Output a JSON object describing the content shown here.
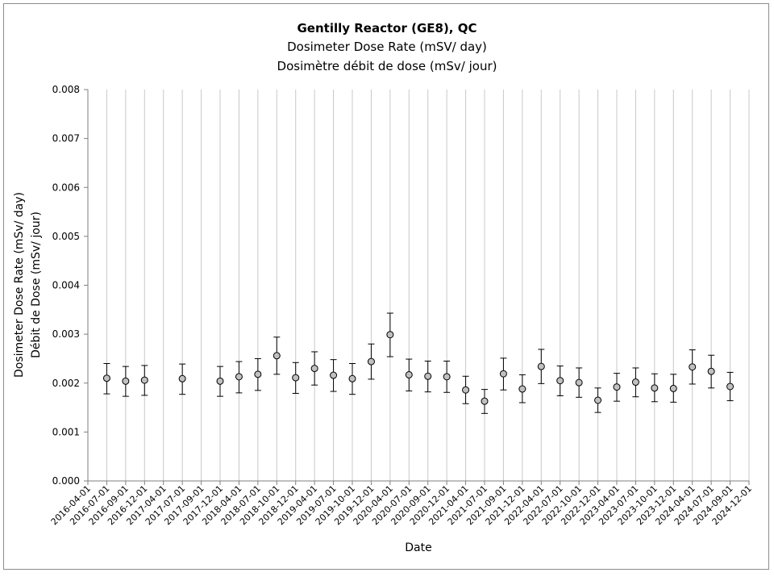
{
  "chart_data": {
    "type": "scatter",
    "title": "Gentilly Reactor (GE8), QC",
    "subtitle_1": "Dosimeter Dose Rate (mSV/ day)",
    "subtitle_2": "Dosimètre débit de dose (mSv/ jour)",
    "xlabel": "Date",
    "ylabel_1": "Dosimeter Dose Rate (mSv/ day)",
    "ylabel_2": "Débit de Dose (mSv/ jour)",
    "ylim": [
      0,
      0.008
    ],
    "yticks": [
      "0.000",
      "0.001",
      "0.002",
      "0.003",
      "0.004",
      "0.005",
      "0.006",
      "0.007",
      "0.008"
    ],
    "xticks": [
      "2016-04-01",
      "2016-07-01",
      "2016-09-01",
      "2016-12-01",
      "2017-04-01",
      "2017-07-01",
      "2017-09-01",
      "2017-12-01",
      "2018-04-01",
      "2018-07-01",
      "2018-10-01",
      "2018-12-01",
      "2019-04-01",
      "2019-07-01",
      "2019-10-01",
      "2019-12-01",
      "2020-04-01",
      "2020-07-01",
      "2020-09-01",
      "2020-12-01",
      "2021-04-01",
      "2021-07-01",
      "2021-09-01",
      "2021-12-01",
      "2022-04-01",
      "2022-07-01",
      "2022-10-01",
      "2022-12-01",
      "2023-04-01",
      "2023-07-01",
      "2023-10-01",
      "2023-12-01",
      "2024-04-01",
      "2024-07-01",
      "2024-09-01",
      "2024-12-01"
    ],
    "grid": "vertical",
    "marker_color": "#c0c0c0",
    "points": [
      {
        "x": "2016-07-01",
        "y": 0.0021,
        "err_low": 0.00178,
        "err_high": 0.0024
      },
      {
        "x": "2016-09-01",
        "y": 0.00204,
        "err_low": 0.00173,
        "err_high": 0.00234
      },
      {
        "x": "2016-12-01",
        "y": 0.00206,
        "err_low": 0.00175,
        "err_high": 0.00236
      },
      {
        "x": "2017-07-01",
        "y": 0.00209,
        "err_low": 0.00177,
        "err_high": 0.00239
      },
      {
        "x": "2017-12-01",
        "y": 0.00204,
        "err_low": 0.00173,
        "err_high": 0.00234
      },
      {
        "x": "2018-04-01",
        "y": 0.00213,
        "err_low": 0.0018,
        "err_high": 0.00244
      },
      {
        "x": "2018-07-01",
        "y": 0.00218,
        "err_low": 0.00185,
        "err_high": 0.0025
      },
      {
        "x": "2018-10-01",
        "y": 0.00256,
        "err_low": 0.00218,
        "err_high": 0.00294
      },
      {
        "x": "2018-12-01",
        "y": 0.00211,
        "err_low": 0.00179,
        "err_high": 0.00242
      },
      {
        "x": "2019-04-01",
        "y": 0.0023,
        "err_low": 0.00196,
        "err_high": 0.00264
      },
      {
        "x": "2019-07-01",
        "y": 0.00216,
        "err_low": 0.00183,
        "err_high": 0.00248
      },
      {
        "x": "2019-10-01",
        "y": 0.00209,
        "err_low": 0.00177,
        "err_high": 0.0024
      },
      {
        "x": "2019-12-01",
        "y": 0.00244,
        "err_low": 0.00208,
        "err_high": 0.0028
      },
      {
        "x": "2020-04-01",
        "y": 0.00299,
        "err_low": 0.00254,
        "err_high": 0.00343
      },
      {
        "x": "2020-07-01",
        "y": 0.00217,
        "err_low": 0.00184,
        "err_high": 0.00249
      },
      {
        "x": "2020-09-01",
        "y": 0.00214,
        "err_low": 0.00182,
        "err_high": 0.00245
      },
      {
        "x": "2020-12-01",
        "y": 0.00213,
        "err_low": 0.00181,
        "err_high": 0.00245
      },
      {
        "x": "2021-04-01",
        "y": 0.00186,
        "err_low": 0.00158,
        "err_high": 0.00214
      },
      {
        "x": "2021-07-01",
        "y": 0.00163,
        "err_low": 0.00138,
        "err_high": 0.00187
      },
      {
        "x": "2021-09-01",
        "y": 0.00219,
        "err_low": 0.00186,
        "err_high": 0.00251
      },
      {
        "x": "2021-12-01",
        "y": 0.00188,
        "err_low": 0.0016,
        "err_high": 0.00217
      },
      {
        "x": "2022-04-01",
        "y": 0.00234,
        "err_low": 0.00199,
        "err_high": 0.00269
      },
      {
        "x": "2022-07-01",
        "y": 0.00205,
        "err_low": 0.00174,
        "err_high": 0.00235
      },
      {
        "x": "2022-10-01",
        "y": 0.00201,
        "err_low": 0.00171,
        "err_high": 0.00231
      },
      {
        "x": "2022-12-01",
        "y": 0.00165,
        "err_low": 0.0014,
        "err_high": 0.0019
      },
      {
        "x": "2023-04-01",
        "y": 0.00192,
        "err_low": 0.00163,
        "err_high": 0.0022
      },
      {
        "x": "2023-07-01",
        "y": 0.00202,
        "err_low": 0.00172,
        "err_high": 0.00231
      },
      {
        "x": "2023-10-01",
        "y": 0.0019,
        "err_low": 0.00162,
        "err_high": 0.00219
      },
      {
        "x": "2023-12-01",
        "y": 0.00189,
        "err_low": 0.00161,
        "err_high": 0.00218
      },
      {
        "x": "2024-04-01",
        "y": 0.00233,
        "err_low": 0.00198,
        "err_high": 0.00268
      },
      {
        "x": "2024-07-01",
        "y": 0.00224,
        "err_low": 0.0019,
        "err_high": 0.00257
      },
      {
        "x": "2024-09-01",
        "y": 0.00193,
        "err_low": 0.00164,
        "err_high": 0.00222
      }
    ]
  }
}
